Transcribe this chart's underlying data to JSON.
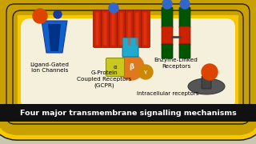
{
  "bg_outer": "#c8c8b0",
  "bg_inner": "#f5f0dc",
  "membrane_yellow": "#f5c800",
  "membrane_dark_yellow": "#c8a000",
  "black": "#111111",
  "title_text": "Four major transmembrane signalling mechanisms",
  "title_bg": "#111111",
  "title_color": "#ffffff",
  "title_fontsize": 6.8,
  "label_ligand": "Ligand-Gated\nIon Channels",
  "label_gprotein": "G-Protein\nCoupled Receptors\n(GCPR)",
  "label_enzyme": "Enzyme-Linked\nReceptors",
  "label_intra": "Intracellular receptors",
  "blue_dark": "#1a3a9a",
  "blue_mid": "#1060cc",
  "orange_ball": "#dd4400",
  "red_helix": "#cc2200",
  "green_dark": "#005500",
  "teal_box": "#22aacc",
  "grey_disk": "#555555"
}
